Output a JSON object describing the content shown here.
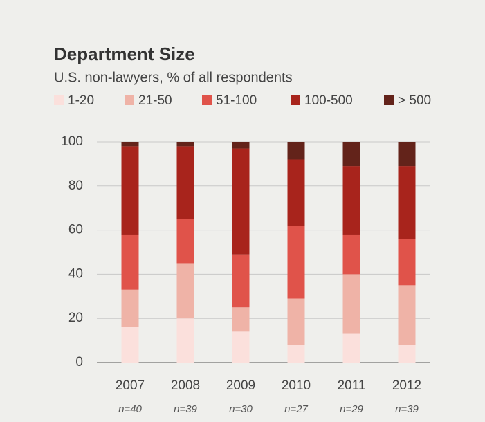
{
  "chart_data": {
    "type": "stacked_bar",
    "title": "Department Size",
    "subtitle": "U.S. non-lawyers, % of all respondents",
    "categories": [
      "2007",
      "2008",
      "2009",
      "2010",
      "2011",
      "2012"
    ],
    "sample_sizes": [
      "n=40",
      "n=39",
      "n=30",
      "n=27",
      "n=29",
      "n=39"
    ],
    "series": [
      {
        "name": "1-20",
        "color": "#fbe0dc",
        "values": [
          16,
          20,
          14,
          8,
          13,
          8
        ]
      },
      {
        "name": "21-50",
        "color": "#efb3a7",
        "values": [
          17,
          25,
          11,
          21,
          27,
          27
        ]
      },
      {
        "name": "51-100",
        "color": "#e0534a",
        "values": [
          25,
          20,
          24,
          33,
          18,
          21
        ]
      },
      {
        "name": "100-500",
        "color": "#a8241c",
        "values": [
          40,
          33,
          48,
          30,
          31,
          33
        ]
      },
      {
        "name": "> 500",
        "color": "#63231a",
        "values": [
          2,
          2,
          3,
          8,
          11,
          11
        ]
      }
    ],
    "ylim": [
      0,
      100
    ],
    "yticks": [
      0,
      20,
      40,
      60,
      80,
      100
    ],
    "grid": true,
    "legend": "top"
  }
}
